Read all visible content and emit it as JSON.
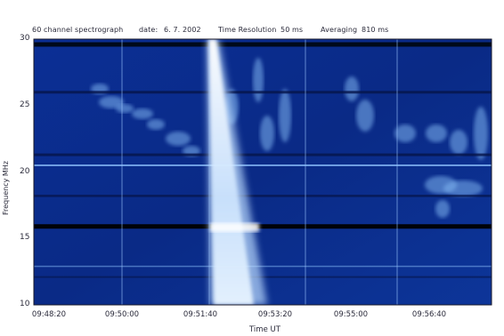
{
  "header": {
    "title": "60 channel spectrograph",
    "date_label": "date:",
    "date_value": "6.  7.  2002",
    "resolution_label": "Time Resolution",
    "resolution_value": "50 ms",
    "averaging_label": "Averaging",
    "averaging_value": "810 ms"
  },
  "chart_data": {
    "type": "heatmap",
    "title": "60 channel spectrograph",
    "xlabel": "Time UT",
    "ylabel": "Frequency MHz",
    "ylim": [
      10,
      30
    ],
    "y_ticks": [
      "30",
      "25",
      "20",
      "15",
      "10"
    ],
    "x_ticks": [
      "09:48:20",
      "09:50:00",
      "09:51:40",
      "09:53:20",
      "09:55:00",
      "09:56:40"
    ],
    "grid": true,
    "colors": {
      "background": "#0a2a8a",
      "emission": "#e8f4ff"
    }
  }
}
